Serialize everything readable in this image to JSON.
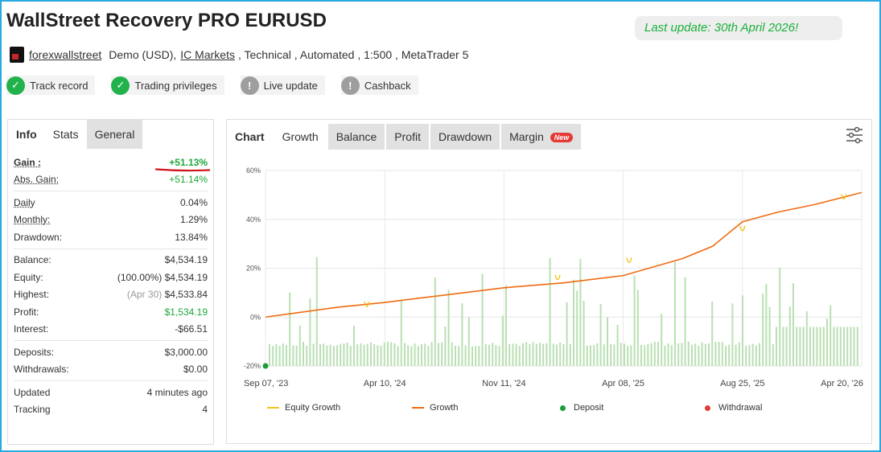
{
  "header": {
    "title": "WallStreet Recovery PRO EURUSD",
    "last_update": "Last update: 30th April 2026!",
    "owner": "forexwallstreet",
    "account_type": "Demo (USD),",
    "broker": "IC Markets",
    "details": ", Technical , Automated , 1:500 , MetaTrader 5"
  },
  "badges": [
    {
      "label": "Track record",
      "state": "ok",
      "icon": "check-icon"
    },
    {
      "label": "Trading privileges",
      "state": "ok",
      "icon": "check-icon"
    },
    {
      "label": "Live update",
      "state": "warn",
      "icon": "exclamation-icon"
    },
    {
      "label": "Cashback",
      "state": "warn",
      "icon": "exclamation-icon"
    }
  ],
  "left_tabs": [
    "Info",
    "Stats",
    "General"
  ],
  "stats": {
    "gain": {
      "label": "Gain :",
      "value": "+51.13%"
    },
    "abs_gain": {
      "label": "Abs. Gain:",
      "value": "+51.14%"
    },
    "daily": {
      "label": "Daily",
      "value": "0.04%"
    },
    "monthly": {
      "label": "Monthly:",
      "value": "1.29%"
    },
    "drawdown": {
      "label": "Drawdown:",
      "value": "13.84%"
    },
    "balance": {
      "label": "Balance:",
      "value": "$4,534.19"
    },
    "equity": {
      "label": "Equity:",
      "note": "(100.00%)",
      "value": "$4,534.19"
    },
    "highest": {
      "label": "Highest:",
      "note": "(Apr 30)",
      "value": "$4,533.84"
    },
    "profit": {
      "label": "Profit:",
      "value": "$1,534.19"
    },
    "interest": {
      "label": "Interest:",
      "value": "-$66.51"
    },
    "deposits": {
      "label": "Deposits:",
      "value": "$3,000.00"
    },
    "withdrawals": {
      "label": "Withdrawals:",
      "value": "$0.00"
    },
    "updated": {
      "label": "Updated",
      "value": "4 minutes ago"
    },
    "tracking": {
      "label": "Tracking",
      "value": "4"
    }
  },
  "right_tabs": {
    "chart": "Chart",
    "growth": "Growth",
    "balance": "Balance",
    "profit": "Profit",
    "drawdown": "Drawdown",
    "margin": "Margin",
    "margin_badge": "New"
  },
  "colors": {
    "growth_line": "#f06b12",
    "equity_line": "#f2c318",
    "bars": "#b9e0b2",
    "deposit": "#1a9e37",
    "withdrawal": "#e53935",
    "accent_green": "#1bb03a"
  },
  "chart_data": {
    "type": "line",
    "y_ticks": [
      "60%",
      "40%",
      "20%",
      "0%",
      "-20%"
    ],
    "ylim": [
      -20,
      60
    ],
    "x_ticks": [
      "Sep 07, '23",
      "Apr 10, '24",
      "Nov 11, '24",
      "Apr 08, '25",
      "Aug 25, '25",
      "Apr 20, '26"
    ],
    "legend": [
      "Equity Growth",
      "Growth",
      "Deposit",
      "Withdrawal"
    ],
    "growth_series": {
      "x_tick_index": [
        0,
        0.3,
        0.6,
        1.0,
        1.5,
        2.0,
        2.5,
        3.0,
        3.5,
        3.75,
        4.0,
        4.3,
        4.6,
        5.0
      ],
      "growth_pct": [
        0,
        2,
        4,
        6,
        9,
        12,
        14,
        17,
        24,
        29,
        39,
        43,
        46,
        51
      ]
    },
    "equity_dips": [
      {
        "x_tick_index": 0.85,
        "growth_pct": 5
      },
      {
        "x_tick_index": 2.45,
        "growth_pct": 16
      },
      {
        "x_tick_index": 3.05,
        "growth_pct": 23
      },
      {
        "x_tick_index": 4.0,
        "growth_pct": 36
      },
      {
        "x_tick_index": 4.85,
        "growth_pct": 49
      }
    ],
    "deposit_point": {
      "x_tick_index": 0,
      "growth_pct": -20
    }
  }
}
